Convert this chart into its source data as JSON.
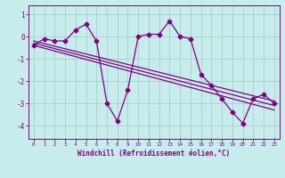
{
  "xlabel": "Windchill (Refroidissement éolien,°C)",
  "background_color": "#c8ecec",
  "line_color": "#800080",
  "xlim": [
    -0.5,
    23.5
  ],
  "ylim": [
    -4.6,
    1.4
  ],
  "yticks": [
    -4,
    -3,
    -2,
    -1,
    0,
    1
  ],
  "xticks": [
    0,
    1,
    2,
    3,
    4,
    5,
    6,
    7,
    8,
    9,
    10,
    11,
    12,
    13,
    14,
    15,
    16,
    17,
    18,
    19,
    20,
    21,
    22,
    23
  ],
  "data_x": [
    0,
    1,
    2,
    3,
    4,
    5,
    6,
    7,
    8,
    9,
    10,
    11,
    12,
    13,
    14,
    15,
    16,
    17,
    18,
    19,
    20,
    21,
    22,
    23
  ],
  "data_y": [
    -0.4,
    -0.1,
    -0.2,
    -0.2,
    0.3,
    0.55,
    -0.2,
    -3.0,
    -3.8,
    -2.4,
    0.0,
    0.1,
    0.1,
    0.7,
    0.0,
    -0.1,
    -1.7,
    -2.2,
    -2.8,
    -3.4,
    -3.9,
    -2.8,
    -2.6,
    -3.0
  ],
  "trend1_x": [
    0,
    23
  ],
  "trend1_y": [
    -0.4,
    -3.3
  ],
  "trend2_x": [
    0,
    23
  ],
  "trend2_y": [
    -0.3,
    -3.1
  ],
  "trend3_x": [
    0,
    23
  ],
  "trend3_y": [
    -0.2,
    -2.9
  ],
  "grid_color": "#a0c8c8",
  "marker": "D",
  "markersize": 2.5,
  "linewidth": 0.9
}
